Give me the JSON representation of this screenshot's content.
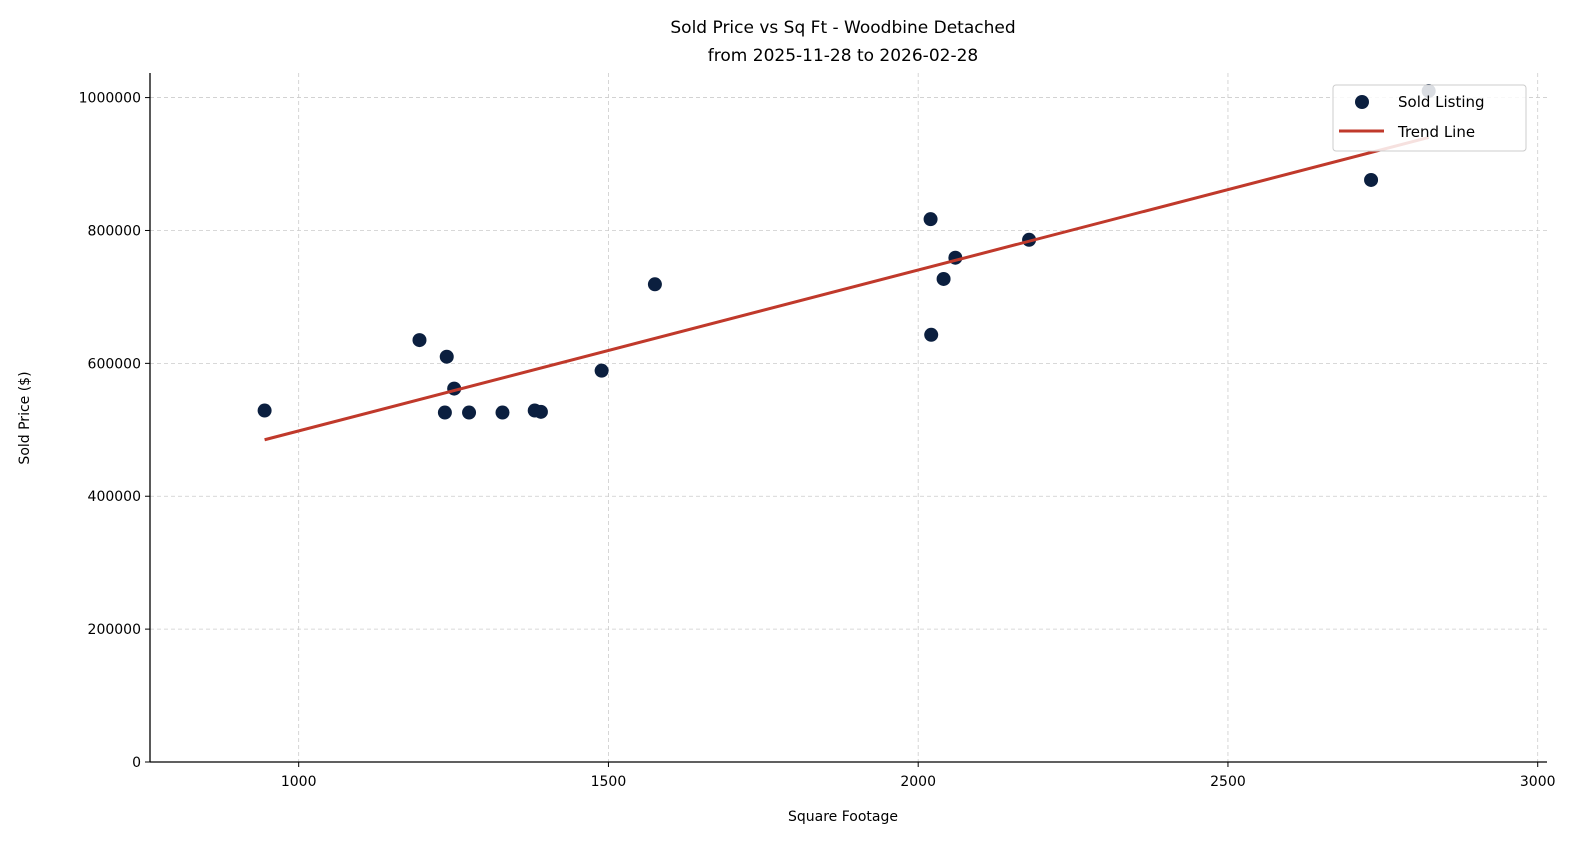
{
  "chart_data": {
    "type": "scatter",
    "title": "Sold Price vs Sq Ft - Woodbine Detached",
    "subtitle": "from 2025-11-28 to 2026-02-28",
    "xlabel": "Square Footage",
    "ylabel": "Sold Price ($)",
    "xlim": [
      760,
      3015
    ],
    "ylim": [
      0,
      1037000
    ],
    "xticks": [
      1000,
      1500,
      2000,
      2500,
      3000
    ],
    "yticks": [
      0,
      200000,
      400000,
      600000,
      800000,
      1000000
    ],
    "grid": true,
    "legend_placement": "top-right",
    "series": [
      {
        "name": "Sold Listing",
        "kind": "scatter",
        "color": "#0b1f3f",
        "points": [
          [
            945,
            529000
          ],
          [
            1195,
            635000
          ],
          [
            1239,
            610000
          ],
          [
            1251,
            562000
          ],
          [
            1236,
            526000
          ],
          [
            1275,
            526000
          ],
          [
            1329,
            526000
          ],
          [
            1381,
            529000
          ],
          [
            1391,
            527000
          ],
          [
            1489,
            589000
          ],
          [
            1575,
            719000
          ],
          [
            2020,
            817000
          ],
          [
            2021,
            643000
          ],
          [
            2041,
            727000
          ],
          [
            2060,
            759000
          ],
          [
            2179,
            786000
          ],
          [
            2731,
            876000
          ],
          [
            2824,
            1010000
          ]
        ]
      },
      {
        "name": "Trend Line",
        "kind": "line",
        "color": "#c0392b",
        "points": [
          [
            945,
            485000
          ],
          [
            2824,
            940000
          ]
        ]
      }
    ]
  }
}
